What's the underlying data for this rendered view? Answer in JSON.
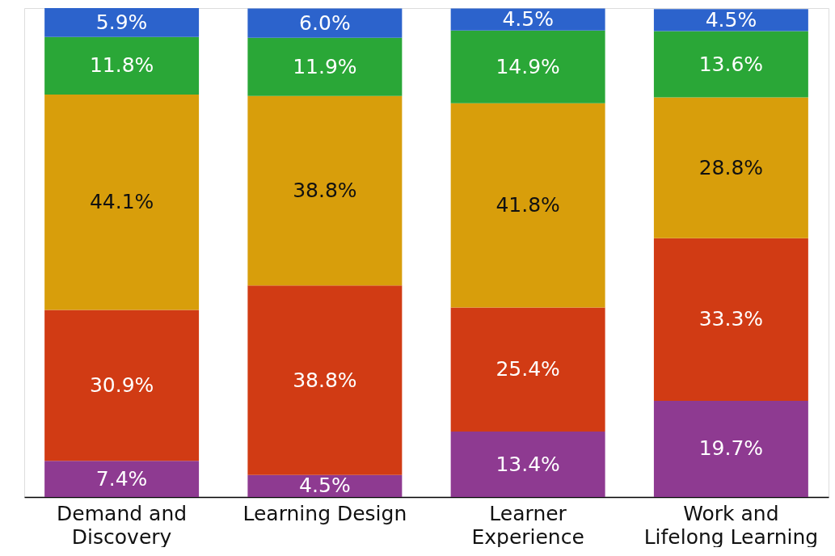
{
  "chart_data": {
    "type": "bar",
    "stacked": true,
    "categories": [
      "Demand and Discovery",
      "Learning Design",
      "Learner Experience",
      "Work and Lifelong Learning"
    ],
    "series": [
      {
        "color": "#8e3a91",
        "values": [
          7.4,
          4.5,
          13.4,
          19.7
        ],
        "value_labels": [
          "7.4%",
          "4.5%",
          "13.4%",
          "19.7%"
        ]
      },
      {
        "color": "#d13b14",
        "values": [
          30.9,
          38.8,
          25.4,
          33.3
        ],
        "value_labels": [
          "30.9%",
          "38.8%",
          "25.4%",
          "33.3%"
        ]
      },
      {
        "color": "#d89e0b",
        "values": [
          44.1,
          38.8,
          41.8,
          28.8
        ],
        "value_labels": [
          "44.1%",
          "38.8%",
          "41.8%",
          "28.8%"
        ]
      },
      {
        "color": "#2aa737",
        "values": [
          11.8,
          11.9,
          14.9,
          13.6
        ],
        "value_labels": [
          "11.8%",
          "11.9%",
          "14.9%",
          "13.6%"
        ]
      },
      {
        "color": "#2c63cc",
        "values": [
          5.9,
          6.0,
          4.5,
          4.5
        ],
        "value_labels": [
          "5.9%",
          "6.0%",
          "4.5%",
          "4.5%"
        ]
      }
    ],
    "grid": false
  }
}
